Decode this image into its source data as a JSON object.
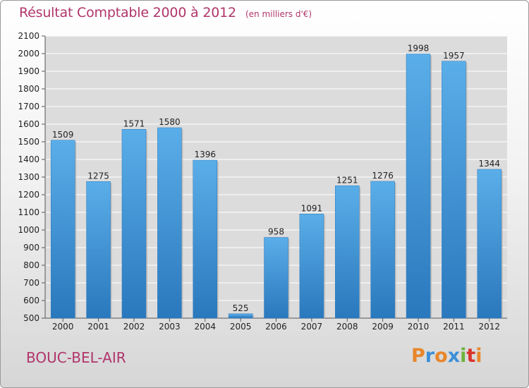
{
  "header": {
    "title": "Résultat Comptable 2000 à 2012",
    "unit": "(en milliers d'€)"
  },
  "footer": {
    "location": "BOUC-BEL-AIR",
    "logo_text": "Proxiti",
    "logo_colors": [
      "#e8862a",
      "#3a8fd8",
      "#e8862a",
      "#3a8fd8",
      "#6db33f",
      "#d9342b",
      "#e8862a"
    ]
  },
  "colors": {
    "bar_light": "#5aaee8",
    "bar_dark": "#2a78bd",
    "title": "#b0356b",
    "plot_background": "#dcdcdc",
    "grid": "#ffffff"
  },
  "chart_data": {
    "type": "bar",
    "title": "Résultat Comptable 2000 à 2012",
    "subtitle": "(en milliers d'€)",
    "xlabel": "",
    "ylabel": "",
    "categories": [
      "2000",
      "2001",
      "2002",
      "2003",
      "2004",
      "2005",
      "2006",
      "2007",
      "2008",
      "2009",
      "2010",
      "2011",
      "2012"
    ],
    "values": [
      1509,
      1275,
      1571,
      1580,
      1396,
      525,
      958,
      1091,
      1251,
      1276,
      1998,
      1957,
      1344
    ],
    "ylim": [
      500,
      2100
    ],
    "yticks": [
      500,
      600,
      700,
      800,
      900,
      1000,
      1100,
      1200,
      1300,
      1400,
      1500,
      1600,
      1700,
      1800,
      1900,
      2000,
      2100
    ],
    "grid": true,
    "data_labels": true
  }
}
